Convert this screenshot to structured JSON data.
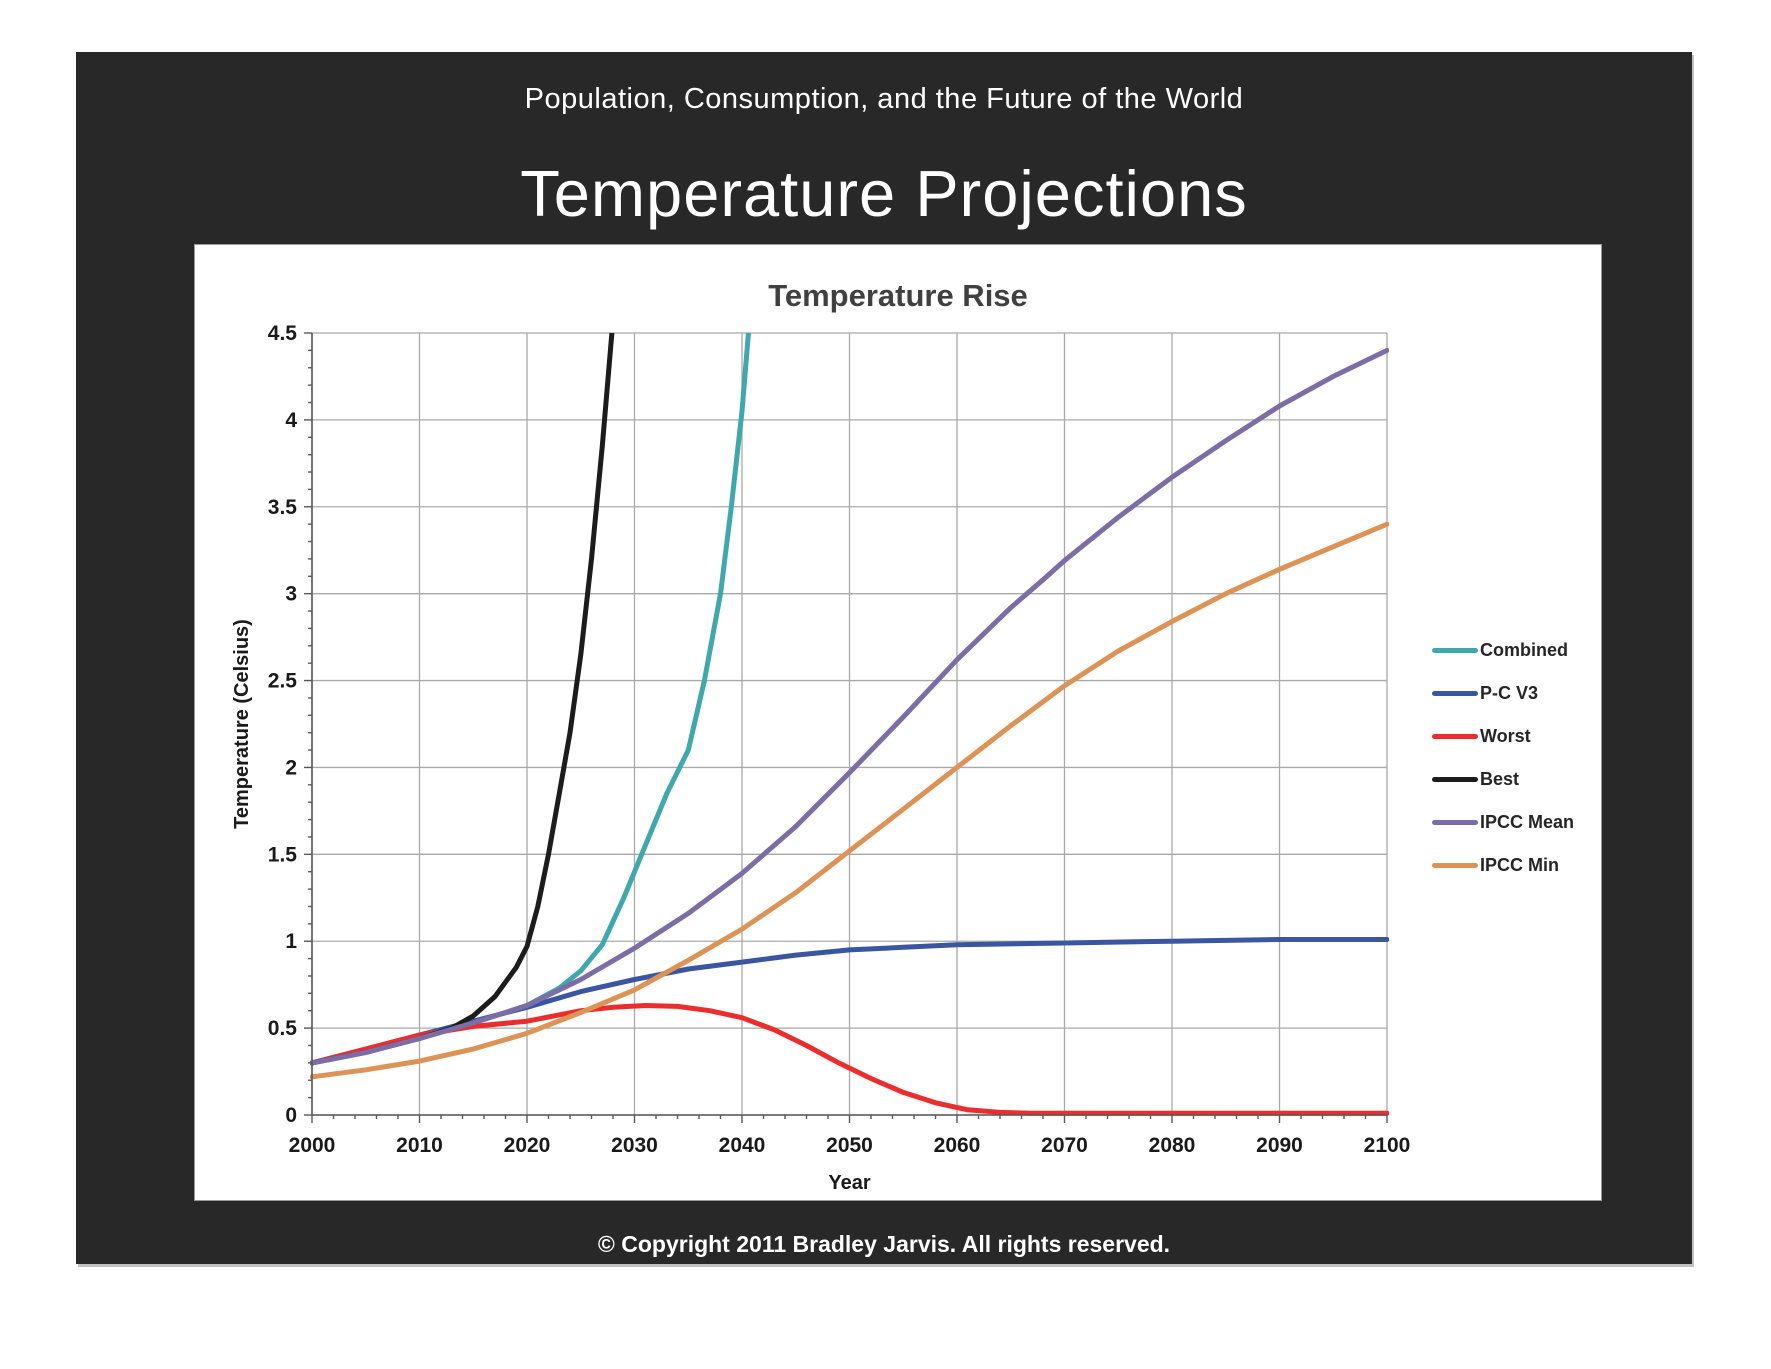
{
  "page": {
    "header": "Population, Consumption, and the Future of the World",
    "title": "Temperature Projections",
    "footer": "© Copyright 2011 Bradley Jarvis.  All rights reserved."
  },
  "colors": {
    "slide_bg": "#282828",
    "panel_bg": "#ffffff",
    "gridline": "#a9a9a9",
    "axis_line": "#595959",
    "axis_text": "#1a1a1a",
    "chart_title_text": "#404040",
    "header_text": "#ffffff"
  },
  "chart_data": {
    "type": "line",
    "title": "Temperature Rise",
    "xlabel": "Year",
    "ylabel": "Temperature (Celsius)",
    "xlim": [
      2000,
      2100
    ],
    "ylim": [
      0,
      4.5
    ],
    "x_tick_labels": [
      "2000",
      "2010",
      "2020",
      "2030",
      "2040",
      "2050",
      "2060",
      "2070",
      "2080",
      "2090",
      "2100"
    ],
    "y_tick_labels": [
      "0",
      "0.5",
      "1",
      "1.5",
      "2",
      "2.5",
      "3",
      "3.5",
      "4",
      "4.5"
    ],
    "grid": true,
    "legend_position": "right",
    "series": [
      {
        "name": "Combined",
        "color": "#3fa8ad",
        "x": [
          2000,
          2005,
          2010,
          2015,
          2020,
          2023,
          2025,
          2027,
          2029,
          2031,
          2033,
          2035,
          2036.5,
          2038,
          2039,
          2040,
          2040.8
        ],
        "y": [
          0.3,
          0.37,
          0.44,
          0.53,
          0.63,
          0.73,
          0.83,
          0.98,
          1.25,
          1.55,
          1.85,
          2.1,
          2.5,
          3.0,
          3.5,
          4.05,
          4.65
        ]
      },
      {
        "name": "P-C V3",
        "color": "#3b56a0",
        "x": [
          2000,
          2005,
          2010,
          2015,
          2020,
          2025,
          2030,
          2035,
          2040,
          2045,
          2050,
          2055,
          2060,
          2070,
          2080,
          2090,
          2100
        ],
        "y": [
          0.3,
          0.38,
          0.46,
          0.54,
          0.62,
          0.71,
          0.78,
          0.84,
          0.88,
          0.92,
          0.95,
          0.965,
          0.98,
          0.99,
          1.0,
          1.01,
          1.01
        ]
      },
      {
        "name": "Worst",
        "color": "#ec2d2d",
        "x": [
          2000,
          2005,
          2010,
          2015,
          2020,
          2025,
          2028,
          2031,
          2034,
          2037,
          2040,
          2043,
          2046,
          2049,
          2052,
          2055,
          2058,
          2061,
          2064,
          2067,
          2070,
          2080,
          2090,
          2100
        ],
        "y": [
          0.3,
          0.38,
          0.46,
          0.51,
          0.54,
          0.6,
          0.62,
          0.63,
          0.625,
          0.6,
          0.56,
          0.49,
          0.4,
          0.3,
          0.21,
          0.13,
          0.07,
          0.03,
          0.015,
          0.01,
          0.01,
          0.01,
          0.01,
          0.01
        ]
      },
      {
        "name": "Best",
        "color": "#1c1c1c",
        "x": [
          2000,
          2005,
          2010,
          2013,
          2015,
          2017,
          2019,
          2020,
          2021,
          2022,
          2023,
          2024,
          2025,
          2026,
          2027,
          2028.1
        ],
        "y": [
          0.3,
          0.36,
          0.44,
          0.5,
          0.57,
          0.68,
          0.85,
          0.97,
          1.2,
          1.5,
          1.85,
          2.2,
          2.65,
          3.2,
          3.85,
          4.65
        ]
      },
      {
        "name": "IPCC Mean",
        "color": "#7c6da6",
        "x": [
          2000,
          2005,
          2010,
          2015,
          2020,
          2025,
          2030,
          2035,
          2040,
          2045,
          2050,
          2055,
          2060,
          2065,
          2068,
          2070,
          2075,
          2080,
          2085,
          2090,
          2095,
          2100
        ],
        "y": [
          0.3,
          0.36,
          0.44,
          0.53,
          0.63,
          0.78,
          0.96,
          1.16,
          1.39,
          1.66,
          1.97,
          2.29,
          2.62,
          2.92,
          3.08,
          3.19,
          3.44,
          3.67,
          3.88,
          4.08,
          4.25,
          4.4
        ]
      },
      {
        "name": "IPCC Min",
        "color": "#de9356",
        "x": [
          2000,
          2005,
          2010,
          2015,
          2020,
          2025,
          2030,
          2035,
          2040,
          2045,
          2050,
          2055,
          2060,
          2065,
          2070,
          2075,
          2080,
          2085,
          2090,
          2095,
          2100
        ],
        "y": [
          0.22,
          0.26,
          0.31,
          0.38,
          0.47,
          0.59,
          0.72,
          0.89,
          1.07,
          1.28,
          1.52,
          1.76,
          2.0,
          2.24,
          2.47,
          2.67,
          2.84,
          3.0,
          3.14,
          3.27,
          3.4
        ]
      }
    ]
  }
}
